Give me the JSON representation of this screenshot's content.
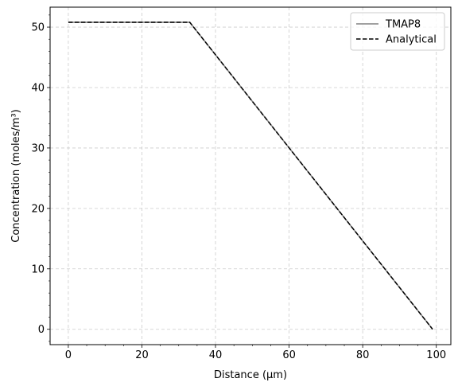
{
  "chart_data": {
    "type": "line",
    "xlabel": "Distance (μm)",
    "ylabel": "Concentration (moles/m³)",
    "xlim": [
      -4.95,
      103.95
    ],
    "ylim": [
      -2.54,
      53.3
    ],
    "xticks": [
      0,
      20,
      40,
      60,
      80,
      100
    ],
    "yticks": [
      0,
      10,
      20,
      30,
      40,
      50
    ],
    "grid": true,
    "legend_position": "top-right",
    "series": [
      {
        "name": "TMAP8",
        "color": "#808080",
        "style": "solid",
        "x": [
          0,
          33,
          99
        ],
        "y": [
          50.8,
          50.8,
          0
        ]
      },
      {
        "name": "Analytical",
        "color": "#000000",
        "style": "dashed",
        "x": [
          0,
          33,
          99
        ],
        "y": [
          50.8,
          50.8,
          0
        ]
      }
    ]
  }
}
